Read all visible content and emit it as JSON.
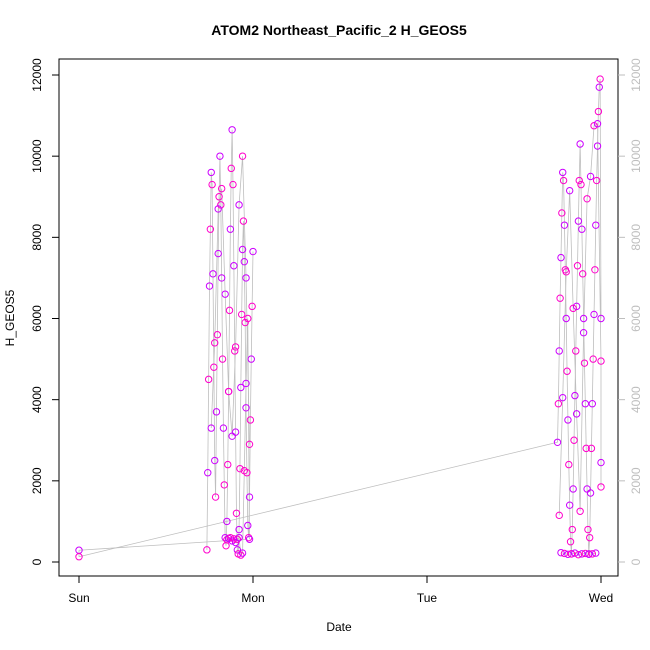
{
  "chart_data": {
    "type": "scatter",
    "title": "ATOM2 Northeast_Pacific_2 H_GEOS5",
    "xlabel": "Date",
    "ylabel": "H_GEOS5",
    "x_ticks": [
      "Sun",
      "Mon",
      "Tue",
      "Wed"
    ],
    "xlim": [
      "Sun",
      "Wed"
    ],
    "ylim": [
      0,
      12000
    ],
    "y_ticks": [
      0,
      2000,
      4000,
      6000,
      8000,
      10000,
      12000
    ],
    "y_ticks_right": [
      0,
      2000,
      4000,
      6000,
      8000,
      10000,
      12000
    ],
    "grid": false,
    "connecting_line_color": "#bebebe",
    "point_colors": [
      "#cc00ff",
      "#ff00cc"
    ],
    "series": [
      {
        "x": [
          0.0,
          0.0
        ],
        "y": [
          290,
          130
        ]
      },
      {
        "x": [
          0.735,
          0.74,
          0.745,
          0.75,
          0.755,
          0.76,
          0.765,
          0.77,
          0.775,
          0.78,
          0.785,
          0.79,
          0.795,
          0.8,
          0.805,
          0.81,
          0.815,
          0.82,
          0.825,
          0.83,
          0.835,
          0.84,
          0.845,
          0.85,
          0.855,
          0.86,
          0.865,
          0.87,
          0.875,
          0.88,
          0.885,
          0.89,
          0.895,
          0.9,
          0.905,
          0.91,
          0.915,
          0.92,
          0.925,
          0.93,
          0.935,
          0.94,
          0.945,
          0.95,
          0.955,
          0.96,
          0.965,
          0.97,
          0.975,
          0.98,
          0.985,
          0.99,
          0.995,
          1.0
        ],
        "y": [
          300,
          2200,
          4500,
          6800,
          8200,
          9600,
          9300,
          7100,
          4800,
          2500,
          1600,
          3700,
          5600,
          7600,
          9000,
          10000,
          8800,
          7000,
          5000,
          3300,
          1900,
          600,
          400,
          1000,
          2400,
          4200,
          6200,
          8200,
          9700,
          10650,
          9300,
          7300,
          5200,
          3200,
          1200,
          300,
          200,
          800,
          2300,
          4300,
          6100,
          7700,
          8400,
          7400,
          5900,
          3800,
          2200,
          900,
          600,
          1600,
          3500,
          5000,
          6300,
          7650
        ]
      },
      {
        "x": [
          0.76,
          0.78,
          0.8,
          0.82,
          0.84,
          0.86,
          0.88,
          0.9,
          0.92,
          0.94,
          0.96,
          0.98
        ],
        "y": [
          3300,
          5400,
          8700,
          9200,
          6600,
          4200,
          3100,
          5300,
          8800,
          10000,
          7000,
          2900
        ]
      },
      {
        "x": [
          0.85,
          0.86,
          0.87,
          0.88,
          0.89,
          0.9,
          0.91,
          0.92,
          0.93,
          0.94,
          0.95,
          0.96,
          0.97,
          0.98
        ],
        "y": [
          550,
          580,
          600,
          520,
          570,
          480,
          560,
          600,
          170,
          220,
          2250,
          4400,
          6000,
          560
        ]
      },
      {
        "x": [
          2.75,
          2.755,
          2.76,
          2.765,
          2.77,
          2.775,
          2.78,
          2.785,
          2.79,
          2.795,
          2.8,
          2.805,
          2.81,
          2.815,
          2.82,
          2.825,
          2.83,
          2.835,
          2.84,
          2.845,
          2.85,
          2.855,
          2.86,
          2.865,
          2.87,
          2.875,
          2.88,
          2.885,
          2.89,
          2.895,
          2.9,
          2.905,
          2.91,
          2.915,
          2.92,
          2.925,
          2.93,
          2.935,
          2.94,
          2.945,
          2.95,
          2.955,
          2.96,
          2.965,
          2.97,
          2.975,
          2.98,
          2.985,
          2.99,
          2.995,
          3.0
        ],
        "y": [
          2950,
          3900,
          5200,
          6500,
          7500,
          8600,
          9600,
          9400,
          8300,
          7200,
          6000,
          4700,
          3500,
          2400,
          1400,
          500,
          200,
          800,
          1800,
          3000,
          4100,
          5200,
          6300,
          7300,
          8400,
          9400,
          10300,
          9300,
          8200,
          7100,
          6000,
          4900,
          3900,
          2800,
          1800,
          800,
          200,
          600,
          1700,
          2800,
          3900,
          5000,
          6100,
          7200,
          8300,
          9400,
          10250,
          11100,
          11700,
          11900,
          6000
        ]
      },
      {
        "x": [
          2.76,
          2.78,
          2.8,
          2.82,
          2.84,
          2.86,
          2.88,
          2.9,
          2.92,
          2.94,
          2.96,
          2.98,
          3.0,
          3.0,
          3.0
        ],
        "y": [
          1150,
          4050,
          7150,
          9150,
          6250,
          3650,
          1250,
          5650,
          8950,
          9500,
          10750,
          10800,
          4950,
          2450,
          1850
        ]
      },
      {
        "x": [
          2.77,
          2.79,
          2.81,
          2.83,
          2.85,
          2.87,
          2.89,
          2.91,
          2.93,
          2.95,
          2.97
        ],
        "y": [
          230,
          210,
          190,
          200,
          220,
          180,
          200,
          210,
          190,
          200,
          220
        ]
      }
    ],
    "connector_segments": [
      {
        "from": [
          0.0,
          290
        ],
        "to": [
          0.97,
          560
        ]
      },
      {
        "from": [
          0.0,
          130
        ],
        "to": [
          2.75,
          2950
        ]
      }
    ]
  }
}
